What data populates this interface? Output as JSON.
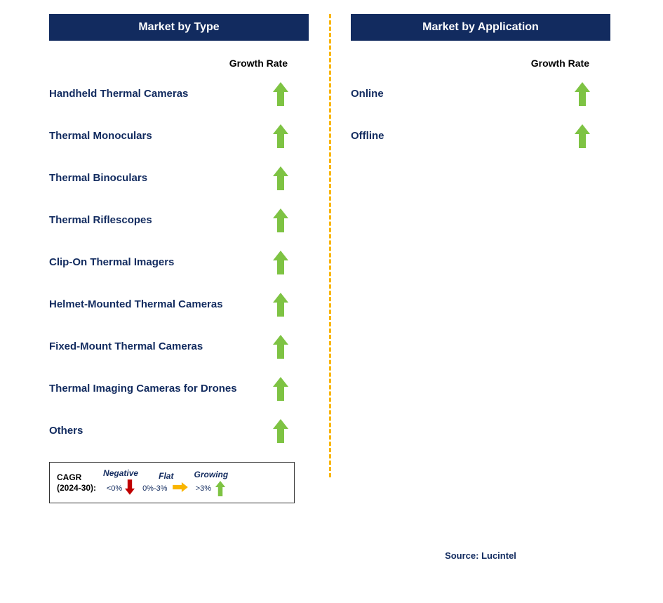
{
  "colors": {
    "header_bg": "#122b5f",
    "header_text": "#ffffff",
    "label_text": "#122b5f",
    "growth_rate_label": "#000000",
    "arrow_growing": "#7ec343",
    "arrow_flat": "#f9b500",
    "arrow_negative": "#c00000",
    "divider": "#f9b500",
    "body_bg": "#ffffff",
    "legend_border": "#333333",
    "source_text": "#122b5f"
  },
  "leftPanel": {
    "title": "Market by Type",
    "growthLabel": "Growth Rate",
    "items": [
      {
        "label": "Handheld Thermal Cameras",
        "growth": "growing"
      },
      {
        "label": "Thermal Monoculars",
        "growth": "growing"
      },
      {
        "label": "Thermal Binoculars",
        "growth": "growing"
      },
      {
        "label": "Thermal Riflescopes",
        "growth": "growing"
      },
      {
        "label": "Clip-On Thermal Imagers",
        "growth": "growing"
      },
      {
        "label": "Helmet-Mounted Thermal Cameras",
        "growth": "growing"
      },
      {
        "label": "Fixed-Mount Thermal Cameras",
        "growth": "growing"
      },
      {
        "label": "Thermal Imaging Cameras for Drones",
        "growth": "growing"
      },
      {
        "label": "Others",
        "growth": "growing"
      }
    ]
  },
  "rightPanel": {
    "title": "Market by Application",
    "growthLabel": "Growth Rate",
    "items": [
      {
        "label": "Online",
        "growth": "growing"
      },
      {
        "label": "Offline",
        "growth": "growing"
      }
    ]
  },
  "legend": {
    "cagr_line1": "CAGR",
    "cagr_line2": "(2024-30):",
    "segments": [
      {
        "title": "Negative",
        "range": "<0%",
        "type": "negative"
      },
      {
        "title": "Flat",
        "range": "0%-3%",
        "type": "flat"
      },
      {
        "title": "Growing",
        "range": ">3%",
        "type": "growing"
      }
    ]
  },
  "source": "Source: Lucintel",
  "arrow_style": {
    "up_width": 22,
    "up_height": 34,
    "legend_arrow_w": 18,
    "legend_arrow_h": 22
  }
}
